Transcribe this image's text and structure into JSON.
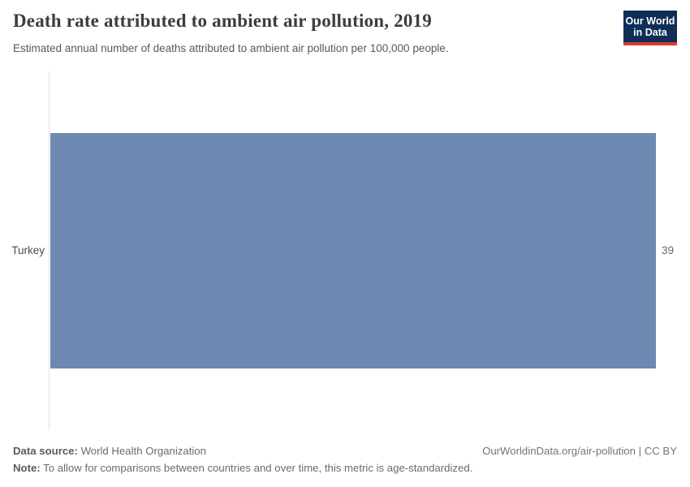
{
  "header": {
    "title": "Death rate attributed to ambient air pollution, 2019",
    "subtitle": "Estimated annual number of deaths attributed to ambient air pollution per 100,000 people.",
    "logo": {
      "line1": "Our World",
      "line2": "in Data",
      "bg_color": "#0d2e57",
      "stripe_color": "#dc3b2e"
    }
  },
  "chart_data": {
    "type": "bar",
    "orientation": "horizontal",
    "title": "Death rate attributed to ambient air pollution, 2019",
    "subtitle": "Estimated annual number of deaths attributed to ambient air pollution per 100,000 people.",
    "categories": [
      "Turkey"
    ],
    "values": [
      39
    ],
    "value_labels": [
      "39"
    ],
    "xlabel": "",
    "ylabel": "",
    "xlim": [
      0,
      39
    ],
    "grid": false,
    "legend": "none",
    "bar_color": "#6d89b1",
    "axis_line_color": "#e2e2e2"
  },
  "footer": {
    "data_source_label": "Data source:",
    "data_source_value": "World Health Organization",
    "note_label": "Note:",
    "note_value": "To allow for comparisons between countries and over time, this metric is age-standardized.",
    "link": "OurWorldinData.org/air-pollution | CC BY"
  }
}
